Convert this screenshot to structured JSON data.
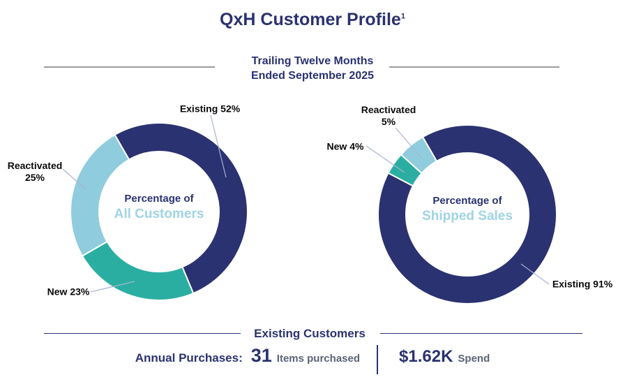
{
  "title": {
    "text": "QxH Customer Profile",
    "superscript": "1"
  },
  "subtitle": {
    "line1": "Trailing Twelve Months",
    "line2": "Ended September 2025"
  },
  "colors": {
    "navy": "#2B3271",
    "teal": "#2BAEA2",
    "light_blue": "#8FCCDE",
    "center_sub_label": "#9FD4E4",
    "muted_text": "#5B6377",
    "leader_line": "#A9B3D2",
    "divider_gray": "#9B9B9B"
  },
  "chart_data": [
    {
      "type": "donut",
      "title": "Percentage of All Customers",
      "center_label": {
        "line1": "Percentage of",
        "line2": "All Customers"
      },
      "start_angle_deg": -30,
      "direction": "clockwise",
      "segments": [
        {
          "label": "Existing",
          "value": 52,
          "color_key": "navy",
          "callout_line1": "Existing 52%",
          "callout_line2": ""
        },
        {
          "label": "New",
          "value": 23,
          "color_key": "teal",
          "callout_line1": "New 23%",
          "callout_line2": ""
        },
        {
          "label": "Reactivated",
          "value": 25,
          "color_key": "light_blue",
          "callout_line1": "Reactivated",
          "callout_line2": "25%"
        }
      ]
    },
    {
      "type": "donut",
      "title": "Percentage of Shipped Sales",
      "center_label": {
        "line1": "Percentage of",
        "line2": "Shipped Sales"
      },
      "start_angle_deg": -30,
      "direction": "clockwise",
      "segments": [
        {
          "label": "Existing",
          "value": 91,
          "color_key": "navy",
          "callout_line1": "Existing 91%",
          "callout_line2": ""
        },
        {
          "label": "New",
          "value": 4,
          "color_key": "teal",
          "callout_line1": "New 4%",
          "callout_line2": ""
        },
        {
          "label": "Reactivated",
          "value": 5,
          "color_key": "light_blue",
          "callout_line1": "Reactivated",
          "callout_line2": "5%"
        }
      ]
    }
  ],
  "footer": {
    "section_title": "Existing Customers",
    "stats_label": "Annual Purchases:",
    "items_value": "31",
    "items_unit": "Items purchased",
    "spend_value": "$1.62K",
    "spend_unit": "Spend"
  }
}
